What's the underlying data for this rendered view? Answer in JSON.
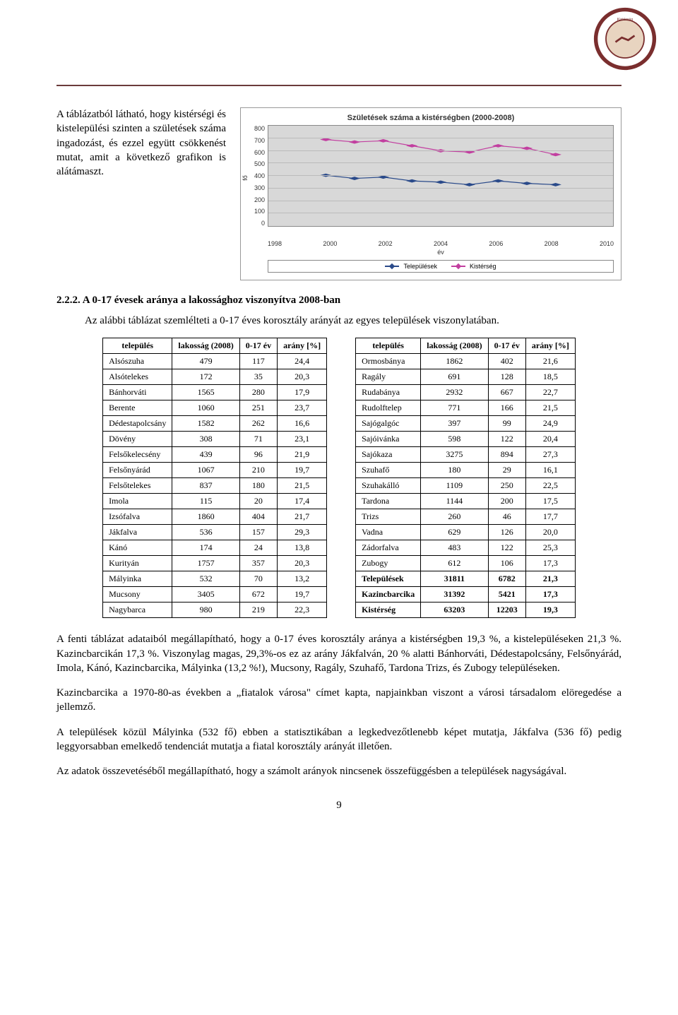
{
  "logo": {
    "ring_color": "#7a2e2e",
    "inner_color": "#d9b38c"
  },
  "intro": "A táblázatból látható, hogy kistérségi és kistelepülési szinten a születések száma ingadozást, és ezzel együtt csökkenést mutat, amit a következő grafikon is alátámaszt.",
  "chart": {
    "title": "Születések száma a kistérségben (2000-2008)",
    "y_label": "fő",
    "x_label": "év",
    "y_ticks": [
      "0",
      "100",
      "200",
      "300",
      "400",
      "500",
      "600",
      "700",
      "800"
    ],
    "x_ticks": [
      "1998",
      "2000",
      "2002",
      "2004",
      "2006",
      "2008",
      "2010"
    ],
    "ylim_max": 800,
    "x_min": 1998,
    "x_max": 2010,
    "series": [
      {
        "name": "Települések",
        "color": "#2a4a8a",
        "points": [
          [
            2000,
            405
          ],
          [
            2001,
            380
          ],
          [
            2002,
            390
          ],
          [
            2003,
            360
          ],
          [
            2004,
            350
          ],
          [
            2005,
            330
          ],
          [
            2006,
            360
          ],
          [
            2007,
            340
          ],
          [
            2008,
            330
          ]
        ]
      },
      {
        "name": "Kistérség",
        "color": "#c23fa0",
        "points": [
          [
            2000,
            690
          ],
          [
            2001,
            670
          ],
          [
            2002,
            680
          ],
          [
            2003,
            640
          ],
          [
            2004,
            600
          ],
          [
            2005,
            590
          ],
          [
            2006,
            640
          ],
          [
            2007,
            620
          ],
          [
            2008,
            570
          ]
        ]
      }
    ],
    "legend": [
      "Települések",
      "Kistérség"
    ]
  },
  "section": {
    "num": "2.2.2.",
    "title": "A 0-17 évesek aránya a lakossághoz viszonyítva 2008-ban",
    "intro": "Az alábbi táblázat szemlélteti a 0-17 éves korosztály arányát az egyes települések viszonylatában."
  },
  "table_headers": [
    "település",
    "lakosság (2008)",
    "0-17 év",
    "arány [%]"
  ],
  "table_left": [
    [
      "Alsószuha",
      "479",
      "117",
      "24,4"
    ],
    [
      "Alsótelekes",
      "172",
      "35",
      "20,3"
    ],
    [
      "Bánhorváti",
      "1565",
      "280",
      "17,9"
    ],
    [
      "Berente",
      "1060",
      "251",
      "23,7"
    ],
    [
      "Dédestapolcsány",
      "1582",
      "262",
      "16,6"
    ],
    [
      "Dövény",
      "308",
      "71",
      "23,1"
    ],
    [
      "Felsőkelecsény",
      "439",
      "96",
      "21,9"
    ],
    [
      "Felsőnyárád",
      "1067",
      "210",
      "19,7"
    ],
    [
      "Felsőtelekes",
      "837",
      "180",
      "21,5"
    ],
    [
      "Imola",
      "115",
      "20",
      "17,4"
    ],
    [
      "Izsófalva",
      "1860",
      "404",
      "21,7"
    ],
    [
      "Jákfalva",
      "536",
      "157",
      "29,3"
    ],
    [
      "Kánó",
      "174",
      "24",
      "13,8"
    ],
    [
      "Kurityán",
      "1757",
      "357",
      "20,3"
    ],
    [
      "Mályinka",
      "532",
      "70",
      "13,2"
    ],
    [
      "Mucsony",
      "3405",
      "672",
      "19,7"
    ],
    [
      "Nagybarca",
      "980",
      "219",
      "22,3"
    ]
  ],
  "table_right": [
    [
      "Ormosbánya",
      "1862",
      "402",
      "21,6"
    ],
    [
      "Ragály",
      "691",
      "128",
      "18,5"
    ],
    [
      "Rudabánya",
      "2932",
      "667",
      "22,7"
    ],
    [
      "Rudolftelep",
      "771",
      "166",
      "21,5"
    ],
    [
      "Sajógalgóc",
      "397",
      "99",
      "24,9"
    ],
    [
      "Sajóivánka",
      "598",
      "122",
      "20,4"
    ],
    [
      "Sajókaza",
      "3275",
      "894",
      "27,3"
    ],
    [
      "Szuhafő",
      "180",
      "29",
      "16,1"
    ],
    [
      "Szuhakálló",
      "1109",
      "250",
      "22,5"
    ],
    [
      "Tardona",
      "1144",
      "200",
      "17,5"
    ],
    [
      "Trizs",
      "260",
      "46",
      "17,7"
    ],
    [
      "Vadna",
      "629",
      "126",
      "20,0"
    ],
    [
      "Zádorfalva",
      "483",
      "122",
      "25,3"
    ],
    [
      "Zubogy",
      "612",
      "106",
      "17,3"
    ]
  ],
  "table_right_bold": [
    [
      "Települések",
      "31811",
      "6782",
      "21,3"
    ],
    [
      "Kazincbarcika",
      "31392",
      "5421",
      "17,3"
    ],
    [
      "Kistérség",
      "63203",
      "12203",
      "19,3"
    ]
  ],
  "para1": "A fenti táblázat adataiból megállapítható, hogy a 0-17 éves korosztály aránya a kistérségben 19,3 %, a kistelepüléseken 21,3 %. Kazincbarcikán 17,3 %. Viszonylag magas, 29,3%-os ez az arány Jákfalván, 20 % alatti Bánhorváti, Dédestapolcsány, Felsőnyárád, Imola, Kánó, Kazincbarcika, Mályinka (13,2 %!), Mucsony, Ragály, Szuhafő, Tardona Trizs, és Zubogy településeken.",
  "para2": "Kazincbarcika a 1970-80-as években a „fiatalok városa\" címet kapta, napjainkban viszont a városi társadalom elöregedése a jellemző.",
  "para3": "A települések közül Mályinka (532 fő) ebben a statisztikában a legkedvezőtlenebb képet mutatja, Jákfalva (536 fő) pedig leggyorsabban emelkedő tendenciát mutatja a fiatal korosztály arányát illetően.",
  "para4": "Az adatok összevetéséből megállapítható, hogy a számolt arányok nincsenek összefüggésben a települések nagyságával.",
  "page_num": "9"
}
